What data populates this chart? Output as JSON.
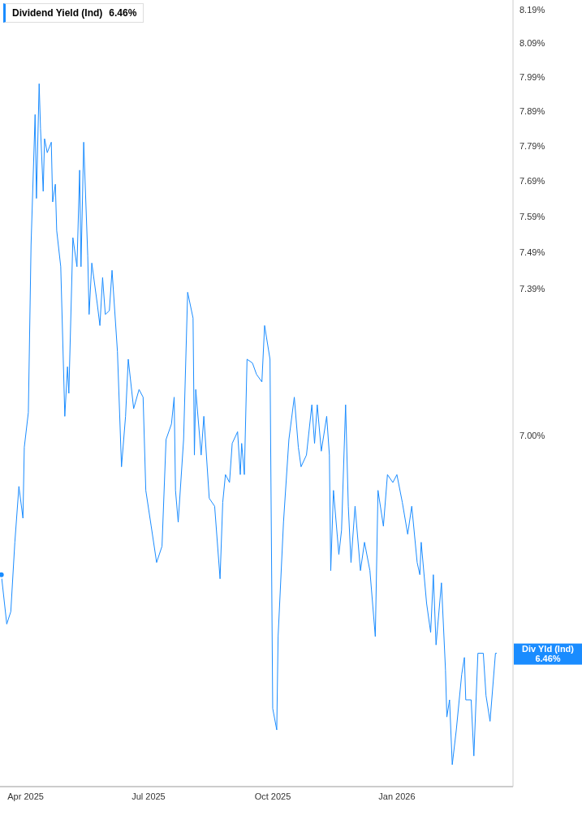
{
  "chart_data": {
    "type": "line",
    "title": "Dividend Yield (Ind)",
    "subtitle": "6.46%",
    "log": true,
    "x": [
      "2025-03-14",
      "2025-03-18",
      "2025-03-21",
      "2025-03-24",
      "2025-03-27",
      "2025-03-30",
      "2025-03-31",
      "2025-04-03",
      "2025-04-05",
      "2025-04-08",
      "2025-04-09",
      "2025-04-11",
      "2025-04-12",
      "2025-04-14",
      "2025-04-15",
      "2025-04-17",
      "2025-04-20",
      "2025-04-21",
      "2025-04-23",
      "2025-04-24",
      "2025-04-27",
      "2025-04-30",
      "2025-05-02",
      "2025-05-03",
      "2025-05-06",
      "2025-05-09",
      "2025-05-11",
      "2025-05-12",
      "2025-05-14",
      "2025-05-17",
      "2025-05-18",
      "2025-05-20",
      "2025-05-24",
      "2025-05-26",
      "2025-05-28",
      "2025-05-30",
      "2025-06-02",
      "2025-06-04",
      "2025-06-08",
      "2025-06-11",
      "2025-06-14",
      "2025-06-16",
      "2025-06-20",
      "2025-06-24",
      "2025-06-27",
      "2025-06-29",
      "2025-07-03",
      "2025-07-07",
      "2025-07-11",
      "2025-07-14",
      "2025-07-18",
      "2025-07-20",
      "2025-07-21",
      "2025-07-23",
      "2025-07-27",
      "2025-07-30",
      "2025-08-03",
      "2025-08-04",
      "2025-08-05",
      "2025-08-09",
      "2025-08-11",
      "2025-08-15",
      "2025-08-19",
      "2025-08-23",
      "2025-08-25",
      "2025-08-27",
      "2025-08-30",
      "2025-09-01",
      "2025-09-05",
      "2025-09-07",
      "2025-09-08",
      "2025-09-10",
      "2025-09-12",
      "2025-09-16",
      "2025-09-19",
      "2025-09-23",
      "2025-09-25",
      "2025-09-29",
      "2025-10-01",
      "2025-10-04",
      "2025-10-05",
      "2025-10-09",
      "2025-10-13",
      "2025-10-17",
      "2025-10-20",
      "2025-10-22",
      "2025-10-26",
      "2025-10-30",
      "2025-11-01",
      "2025-11-03",
      "2025-11-06",
      "2025-11-10",
      "2025-11-12",
      "2025-11-13",
      "2025-11-15",
      "2025-11-19",
      "2025-11-21",
      "2025-11-24",
      "2025-11-26",
      "2025-11-28",
      "2025-12-01",
      "2025-12-05",
      "2025-12-08",
      "2025-12-12",
      "2025-12-16",
      "2025-12-18",
      "2025-12-22",
      "2025-12-25",
      "2025-12-29",
      "2026-01-01",
      "2026-01-05",
      "2026-01-09",
      "2026-01-12",
      "2026-01-16",
      "2026-01-18",
      "2026-01-19",
      "2026-01-23",
      "2026-01-26",
      "2026-01-28",
      "2026-01-30",
      "2026-02-03",
      "2026-02-06",
      "2026-02-07",
      "2026-02-09",
      "2026-02-11",
      "2026-02-14",
      "2026-02-18",
      "2026-02-20",
      "2026-02-21",
      "2026-02-25",
      "2026-02-27",
      "2026-03-02",
      "2026-03-06",
      "2026-03-08",
      "2026-03-11",
      "2026-03-15",
      "2026-03-16"
    ],
    "series": [
      {
        "color": "#1a8cff",
        "values": [
          6.65,
          6.53,
          6.56,
          6.73,
          6.87,
          6.79,
          6.97,
          7.06,
          7.51,
          7.88,
          7.64,
          7.97,
          7.84,
          7.66,
          7.81,
          7.77,
          7.8,
          7.63,
          7.68,
          7.55,
          7.45,
          7.05,
          7.18,
          7.11,
          7.53,
          7.45,
          7.72,
          7.45,
          7.8,
          7.48,
          7.32,
          7.46,
          7.35,
          7.29,
          7.42,
          7.32,
          7.33,
          7.44,
          7.22,
          6.92,
          7.05,
          7.2,
          7.07,
          7.12,
          7.1,
          6.86,
          6.77,
          6.68,
          6.72,
          6.99,
          7.03,
          7.1,
          6.86,
          6.78,
          6.99,
          7.38,
          7.31,
          6.95,
          7.12,
          6.95,
          7.05,
          6.84,
          6.82,
          6.64,
          6.83,
          6.9,
          6.88,
          6.98,
          7.01,
          6.9,
          6.98,
          6.9,
          7.2,
          7.19,
          7.16,
          7.14,
          7.29,
          7.2,
          6.33,
          6.28,
          6.5,
          6.78,
          6.99,
          7.1,
          6.97,
          6.92,
          6.95,
          7.08,
          6.98,
          7.08,
          6.96,
          7.05,
          6.95,
          6.66,
          6.86,
          6.7,
          6.76,
          7.08,
          6.82,
          6.68,
          6.82,
          6.66,
          6.73,
          6.66,
          6.5,
          6.86,
          6.77,
          6.9,
          6.88,
          6.9,
          6.83,
          6.75,
          6.82,
          6.68,
          6.65,
          6.73,
          6.58,
          6.51,
          6.65,
          6.48,
          6.63,
          6.42,
          6.31,
          6.35,
          6.2,
          6.28,
          6.41,
          6.45,
          6.35,
          6.35,
          6.22,
          6.46,
          6.46,
          6.36,
          6.3,
          6.46,
          6.46
        ]
      }
    ],
    "xlim": [
      "2025-03-13",
      "2026-03-28"
    ],
    "xticks": [
      {
        "value": "2025-04-01",
        "label": "Apr 2025"
      },
      {
        "value": "2025-07-01",
        "label": "Jul 2025"
      },
      {
        "value": "2025-10-01",
        "label": "Oct 2025"
      },
      {
        "value": "2026-01-01",
        "label": "Jan 2026"
      }
    ],
    "ylim": [
      6.15,
      8.22
    ],
    "yticks": [
      {
        "value": 7.0,
        "label": "7.00%"
      },
      {
        "value": 7.39,
        "label": "7.39%"
      },
      {
        "value": 7.49,
        "label": "7.49%"
      },
      {
        "value": 7.59,
        "label": "7.59%"
      },
      {
        "value": 7.69,
        "label": "7.69%"
      },
      {
        "value": 7.79,
        "label": "7.79%"
      },
      {
        "value": 7.89,
        "label": "7.89%"
      },
      {
        "value": 7.99,
        "label": "7.99%"
      },
      {
        "value": 8.09,
        "label": "8.09%"
      },
      {
        "value": 8.19,
        "label": "8.19%"
      }
    ],
    "annotations": [
      "Div Yld (Ind)",
      "6.46%"
    ]
  }
}
